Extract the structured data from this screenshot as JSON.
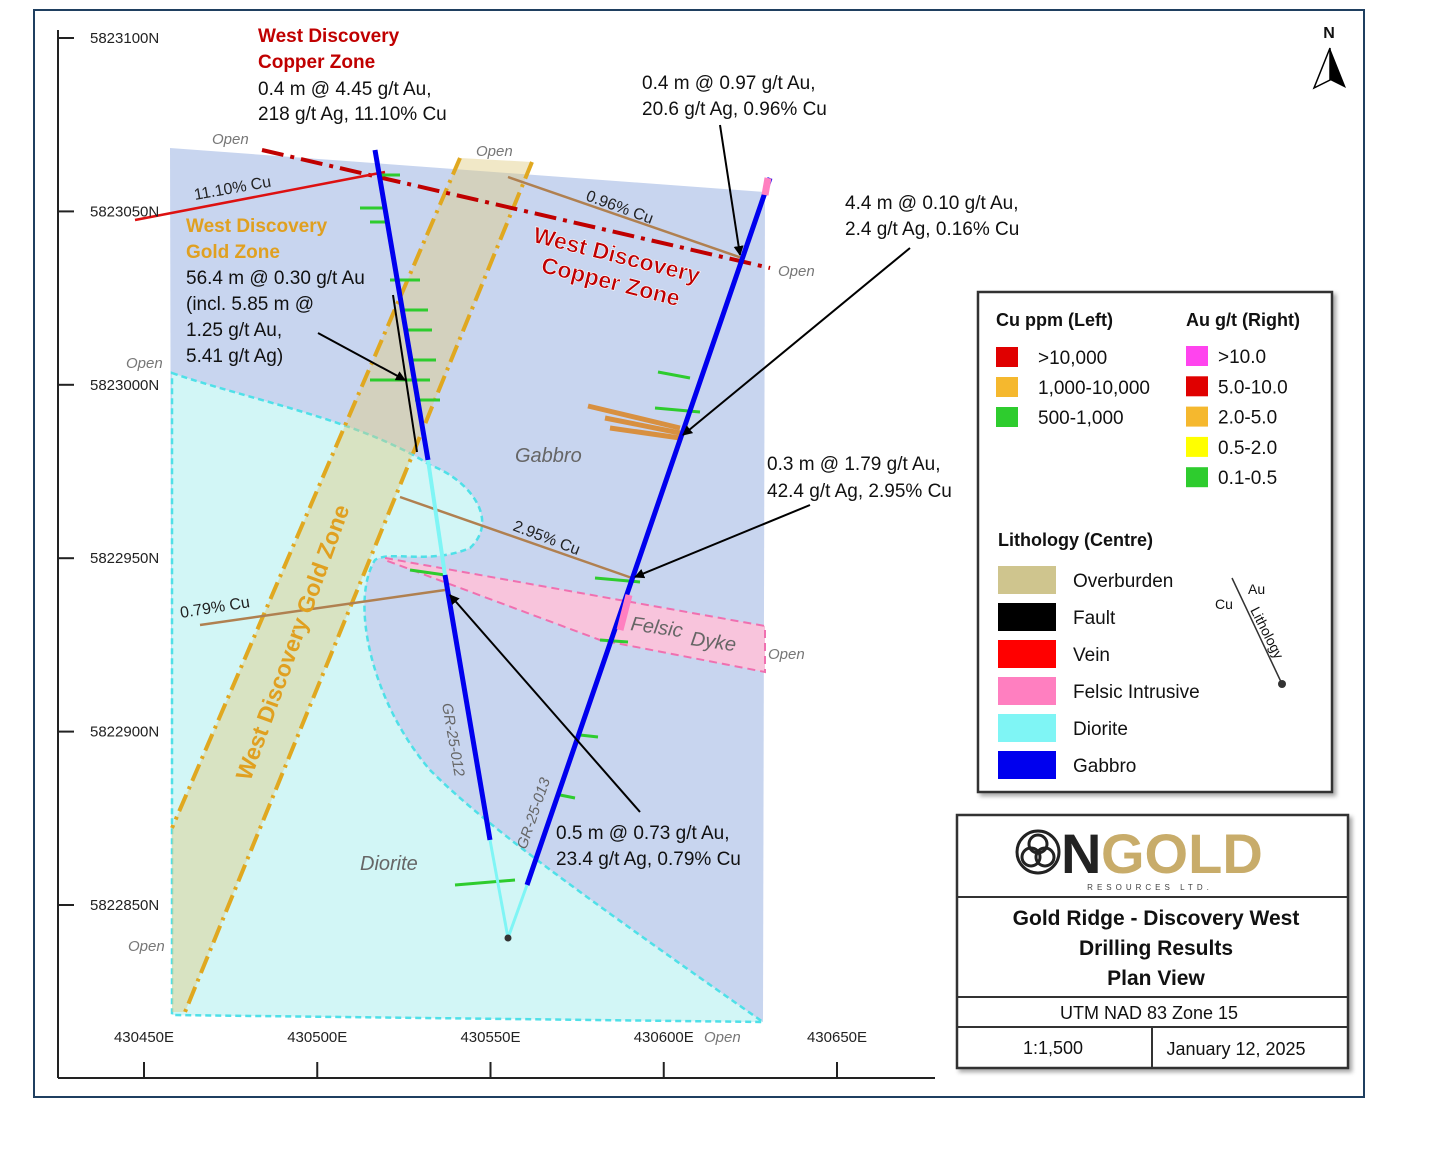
{
  "north": "N",
  "axes": {
    "x": [
      "430450E",
      "430500E",
      "430550E",
      "430600E",
      "430650E"
    ],
    "y": [
      "5823100N",
      "5823050N",
      "5823000N",
      "5822950N",
      "5822900N",
      "5822850N"
    ]
  },
  "open_labels": [
    "Open",
    "Open",
    "Open",
    "Open",
    "Open",
    "Open",
    "Open"
  ],
  "copper_zone_callout": {
    "title": [
      "West Discovery",
      "Copper Zone"
    ],
    "lines": [
      "0.4 m @ 4.45 g/t Au,",
      "218 g/t Ag, 11.10% Cu"
    ]
  },
  "gold_zone_callout": {
    "title": [
      "West Discovery",
      "Gold Zone"
    ],
    "lines": [
      "56.4 m @ 0.30 g/t Au",
      "(incl. 5.85 m @",
      "1.25 g/t Au,",
      "5.41 g/t Ag)"
    ]
  },
  "callouts": [
    [
      "0.4 m @ 0.97 g/t Au,",
      "20.6 g/t Ag, 0.96% Cu"
    ],
    [
      "4.4 m @ 0.10 g/t Au,",
      "2.4 g/t Ag, 0.16% Cu"
    ],
    [
      "0.3 m @ 1.79 g/t Au,",
      "42.4 g/t Ag, 2.95% Cu"
    ],
    [
      "0.5 m @ 0.73 g/t Au,",
      "23.4 g/t Ag, 0.79% Cu"
    ]
  ],
  "intercept_labels": [
    "11.10% Cu",
    "0.96% Cu",
    "2.95% Cu",
    "0.79% Cu"
  ],
  "zone_labels": {
    "copper": [
      "West Discovery",
      "Copper Zone"
    ],
    "gold": "West Discovery Gold Zone"
  },
  "lithology_labels": [
    "Gabbro",
    "Diorite",
    "Felsic",
    "Dyke"
  ],
  "holes": [
    "GR-25-012",
    "GR-25-013"
  ],
  "legend": {
    "cu_title": "Cu ppm (Left)",
    "cu_items": [
      {
        "label": ">10,000",
        "color": "#e00000"
      },
      {
        "label": "1,000-10,000",
        "color": "#f5b82e"
      },
      {
        "label": "500-1,000",
        "color": "#2ecc2e"
      }
    ],
    "au_title": "Au g/t (Right)",
    "au_items": [
      {
        "label": ">10.0",
        "color": "#ff44ee"
      },
      {
        "label": "5.0-10.0",
        "color": "#e00000"
      },
      {
        "label": "2.0-5.0",
        "color": "#f5b82e"
      },
      {
        "label": "0.5-2.0",
        "color": "#ffff00"
      },
      {
        "label": "0.1-0.5",
        "color": "#2ecc2e"
      }
    ],
    "lith_title": "Lithology (Centre)",
    "lith_items": [
      {
        "label": "Overburden",
        "color": "#cfc58e"
      },
      {
        "label": "Fault",
        "color": "#000000"
      },
      {
        "label": "Vein",
        "color": "#ff0000"
      },
      {
        "label": "Felsic Intrusive",
        "color": "#ff7fc0"
      },
      {
        "label": "Diorite",
        "color": "#7ff5f5"
      },
      {
        "label": "Gabbro",
        "color": "#0000ee"
      }
    ],
    "diagram": [
      "Au",
      "Cu",
      "Lithology"
    ]
  },
  "title_block": {
    "logo": [
      "N",
      "GOLD"
    ],
    "logo_sub": "RESOURCES LTD.",
    "title": [
      "Gold Ridge - Discovery West",
      "Drilling Results",
      "Plan View"
    ],
    "projection": "UTM NAD 83 Zone 15",
    "scale": "1:1,500",
    "date": "January 12, 2025"
  }
}
